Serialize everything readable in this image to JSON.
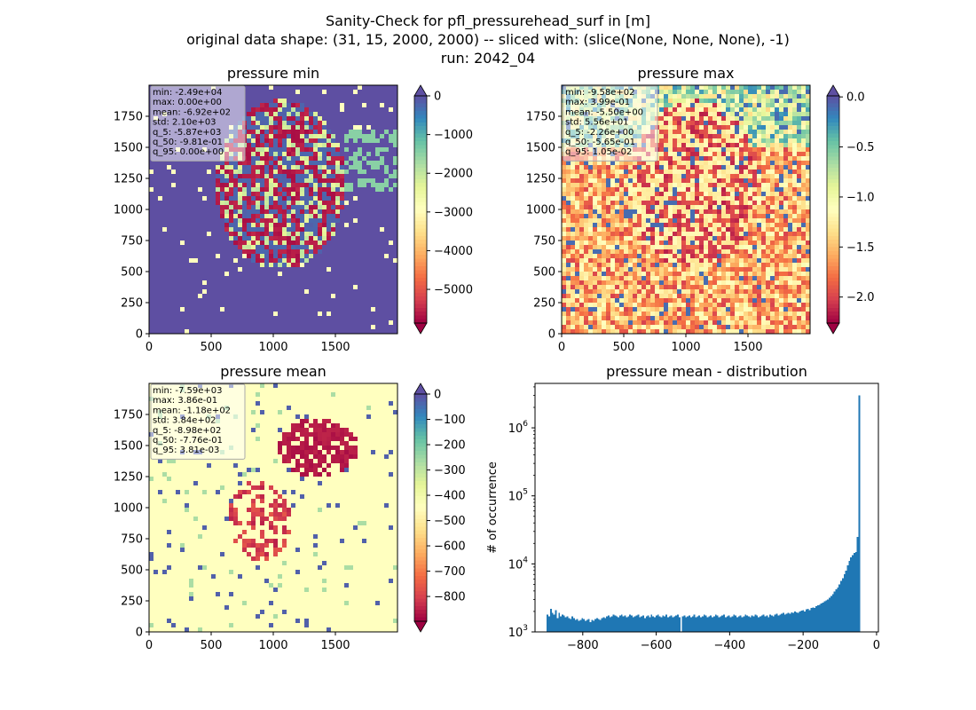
{
  "figure": {
    "title_line1": "Sanity-Check for pfl_pressurehead_surf in [m]",
    "title_line2": "original data shape: (31, 15, 2000, 2000) -- sliced with: (slice(None, None, None), -1)",
    "title_line3": "run: 2042_04"
  },
  "chart_data": [
    {
      "type": "heatmap",
      "title": "pressure min",
      "xlim": [
        0,
        2000
      ],
      "ylim": [
        0,
        2000
      ],
      "xticks": [
        0,
        500,
        1000,
        1500
      ],
      "yticks": [
        0,
        250,
        500,
        750,
        1000,
        1250,
        1500,
        1750
      ],
      "colormap": "Spectral",
      "colorbar": {
        "ticks": [
          0,
          -1000,
          -2000,
          -3000,
          -4000,
          -5000
        ],
        "tick_labels": [
          "0",
          "−1000",
          "−2000",
          "−3000",
          "−4000",
          "−5000"
        ],
        "range": [
          -5870,
          0
        ],
        "extend": "both"
      },
      "stats": [
        "min: -2.49e+04",
        "max: 0.00e+00",
        "mean: -6.92e+02",
        "std: 2.10e+03",
        "q_5: -5.87e+03",
        "q_50: -9.81e-01",
        "q_95: 0.00e+00"
      ]
    },
    {
      "type": "heatmap",
      "title": "pressure max",
      "xlim": [
        0,
        2000
      ],
      "ylim": [
        0,
        2000
      ],
      "xticks": [
        0,
        500,
        1000,
        1500
      ],
      "yticks": [
        0,
        250,
        500,
        750,
        1000,
        1250,
        1500,
        1750
      ],
      "colormap": "Spectral",
      "colorbar": {
        "ticks": [
          0.0,
          -0.5,
          -1.0,
          -1.5,
          -2.0
        ],
        "tick_labels": [
          "0.0",
          "−0.5",
          "−1.0",
          "−1.5",
          "−2.0"
        ],
        "range": [
          -2.26,
          0.0105
        ],
        "extend": "both"
      },
      "stats": [
        "min: -9.58e+02",
        "max: 3.99e-01",
        "mean: -5.50e+00",
        "std: 5.56e+01",
        "q_5: -2.26e+00",
        "q_50: -5.65e-01",
        "q_95: 1.05e-02"
      ]
    },
    {
      "type": "heatmap",
      "title": "pressure mean",
      "xlim": [
        0,
        2000
      ],
      "ylim": [
        0,
        2000
      ],
      "xticks": [
        0,
        500,
        1000,
        1500
      ],
      "yticks": [
        0,
        250,
        500,
        750,
        1000,
        1250,
        1500,
        1750
      ],
      "colormap": "Spectral",
      "colorbar": {
        "ticks": [
          0,
          -100,
          -200,
          -300,
          -400,
          -500,
          -600,
          -700,
          -800
        ],
        "tick_labels": [
          "0",
          "−100",
          "−200",
          "−300",
          "−400",
          "−500",
          "−600",
          "−700",
          "−800"
        ],
        "range": [
          -898,
          0.0038
        ],
        "extend": "both"
      },
      "stats": [
        "min: -7.59e+03",
        "max: 3.86e-01",
        "mean: -1.18e+02",
        "std: 3.84e+02",
        "q_5: -8.98e+02",
        "q_50: -7.76e-01",
        "q_95: 3.81e-03"
      ]
    },
    {
      "type": "bar",
      "title": "pressure mean - distribution",
      "xlabel": "",
      "ylabel": "# of occurrence",
      "yscale": "log",
      "xlim": [
        -930,
        5
      ],
      "ylim": [
        1000,
        4500000
      ],
      "xticks": [
        -800,
        -600,
        -400,
        -200,
        0
      ],
      "xtick_labels": [
        "−800",
        "−600",
        "−400",
        "−200",
        "0"
      ],
      "yticks": [
        1000,
        10000,
        100000,
        1000000
      ],
      "ytick_labels": [
        [
          "10",
          "3"
        ],
        [
          "10",
          "4"
        ],
        [
          "10",
          "5"
        ],
        [
          "10",
          "6"
        ]
      ],
      "color": "#1f77b4",
      "bin_range": [
        -898,
        0
      ],
      "bins": 200,
      "values": [
        1800,
        1700,
        2200,
        1900,
        1800,
        2100,
        1600,
        1900,
        1700,
        1800,
        1750,
        1650,
        1700,
        1600,
        1550,
        1700,
        1600,
        1500,
        1550,
        1450,
        1500,
        1600,
        1550,
        1450,
        1500,
        1550,
        1400,
        1500,
        1450,
        1550,
        1600,
        1550,
        1500,
        1600,
        1650,
        1600,
        1700,
        1750,
        1650,
        1700,
        1800,
        1750,
        1700,
        1650,
        1750,
        1800,
        1700,
        1750,
        1650,
        1700,
        1800,
        1750,
        1650,
        1700,
        1750,
        1800,
        1650,
        1700,
        1750,
        1600,
        1700,
        1750,
        1650,
        1800,
        1700,
        1650,
        1750,
        1800,
        1700,
        1650,
        1750,
        1700,
        1800,
        1650,
        1700,
        1750,
        1650,
        1700,
        1750,
        1800,
        1650,
        1000,
        1700,
        1750,
        1650,
        1700,
        1750,
        1650,
        1700,
        1800,
        1650,
        1700,
        1750,
        1650,
        1700,
        1800,
        1750,
        1650,
        1700,
        1750,
        1650,
        1700,
        1800,
        1750,
        1650,
        1700,
        1750,
        1800,
        1650,
        1700,
        1750,
        1650,
        1700,
        1800,
        1750,
        1650,
        1700,
        1750,
        1650,
        1700,
        1800,
        1750,
        1700,
        1650,
        1750,
        1700,
        1800,
        1750,
        1650,
        1700,
        1750,
        1800,
        1700,
        1750,
        1650,
        1800,
        1750,
        1700,
        1800,
        1850,
        1750,
        1800,
        1850,
        1900,
        1800,
        1850,
        1900,
        1850,
        1950,
        1900,
        2000,
        1950,
        1900,
        2000,
        2050,
        2100,
        2000,
        2150,
        2200,
        2100,
        2250,
        2300,
        2250,
        2400,
        2450,
        2500,
        2600,
        2700,
        2800,
        2900,
        3000,
        3200,
        3400,
        3600,
        3900,
        4200,
        4500,
        5000,
        5600,
        6200,
        7000,
        8000,
        9500,
        11000,
        12500,
        13500,
        14500,
        15000,
        25000,
        3000000
      ]
    }
  ]
}
